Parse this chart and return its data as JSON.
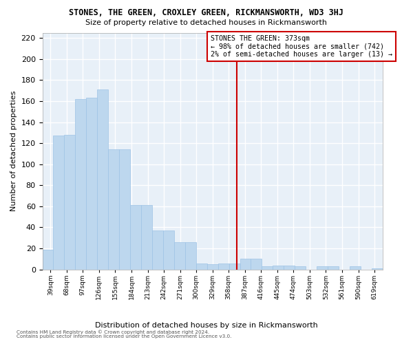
{
  "title": "STONES, THE GREEN, CROXLEY GREEN, RICKMANSWORTH, WD3 3HJ",
  "subtitle": "Size of property relative to detached houses in Rickmansworth",
  "xlabel": "Distribution of detached houses by size in Rickmansworth",
  "ylabel": "Number of detached properties",
  "bar_heights": [
    19,
    127,
    128,
    162,
    163,
    171,
    114,
    114,
    61,
    61,
    37,
    37,
    26,
    26,
    6,
    5,
    6,
    6,
    10,
    10,
    3,
    4,
    4,
    3,
    0,
    3,
    3,
    0,
    3,
    0,
    1
  ],
  "categories": [
    "39sqm",
    "68sqm",
    "97sqm",
    "126sqm",
    "155sqm",
    "184sqm",
    "213sqm",
    "242sqm",
    "271sqm",
    "300sqm",
    "329sqm",
    "358sqm",
    "387sqm",
    "416sqm",
    "445sqm",
    "474sqm",
    "503sqm",
    "532sqm",
    "561sqm",
    "590sqm",
    "619sqm"
  ],
  "bar_color": "#BDD7EE",
  "bar_edge_color": "#9DC3E6",
  "vline_color": "#CC0000",
  "annotation_title": "STONES THE GREEN: 373sqm",
  "annotation_line1": "← 98% of detached houses are smaller (742)",
  "annotation_line2": "2% of semi-detached houses are larger (13) →",
  "ylim": [
    0,
    225
  ],
  "yticks": [
    0,
    20,
    40,
    60,
    80,
    100,
    120,
    140,
    160,
    180,
    200,
    220
  ],
  "background_color": "#E8F0F8",
  "grid_color": "#FFFFFF",
  "footer_line1": "Contains HM Land Registry data © Crown copyright and database right 2024.",
  "footer_line2": "Contains public sector information licensed under the Open Government Licence v3.0."
}
